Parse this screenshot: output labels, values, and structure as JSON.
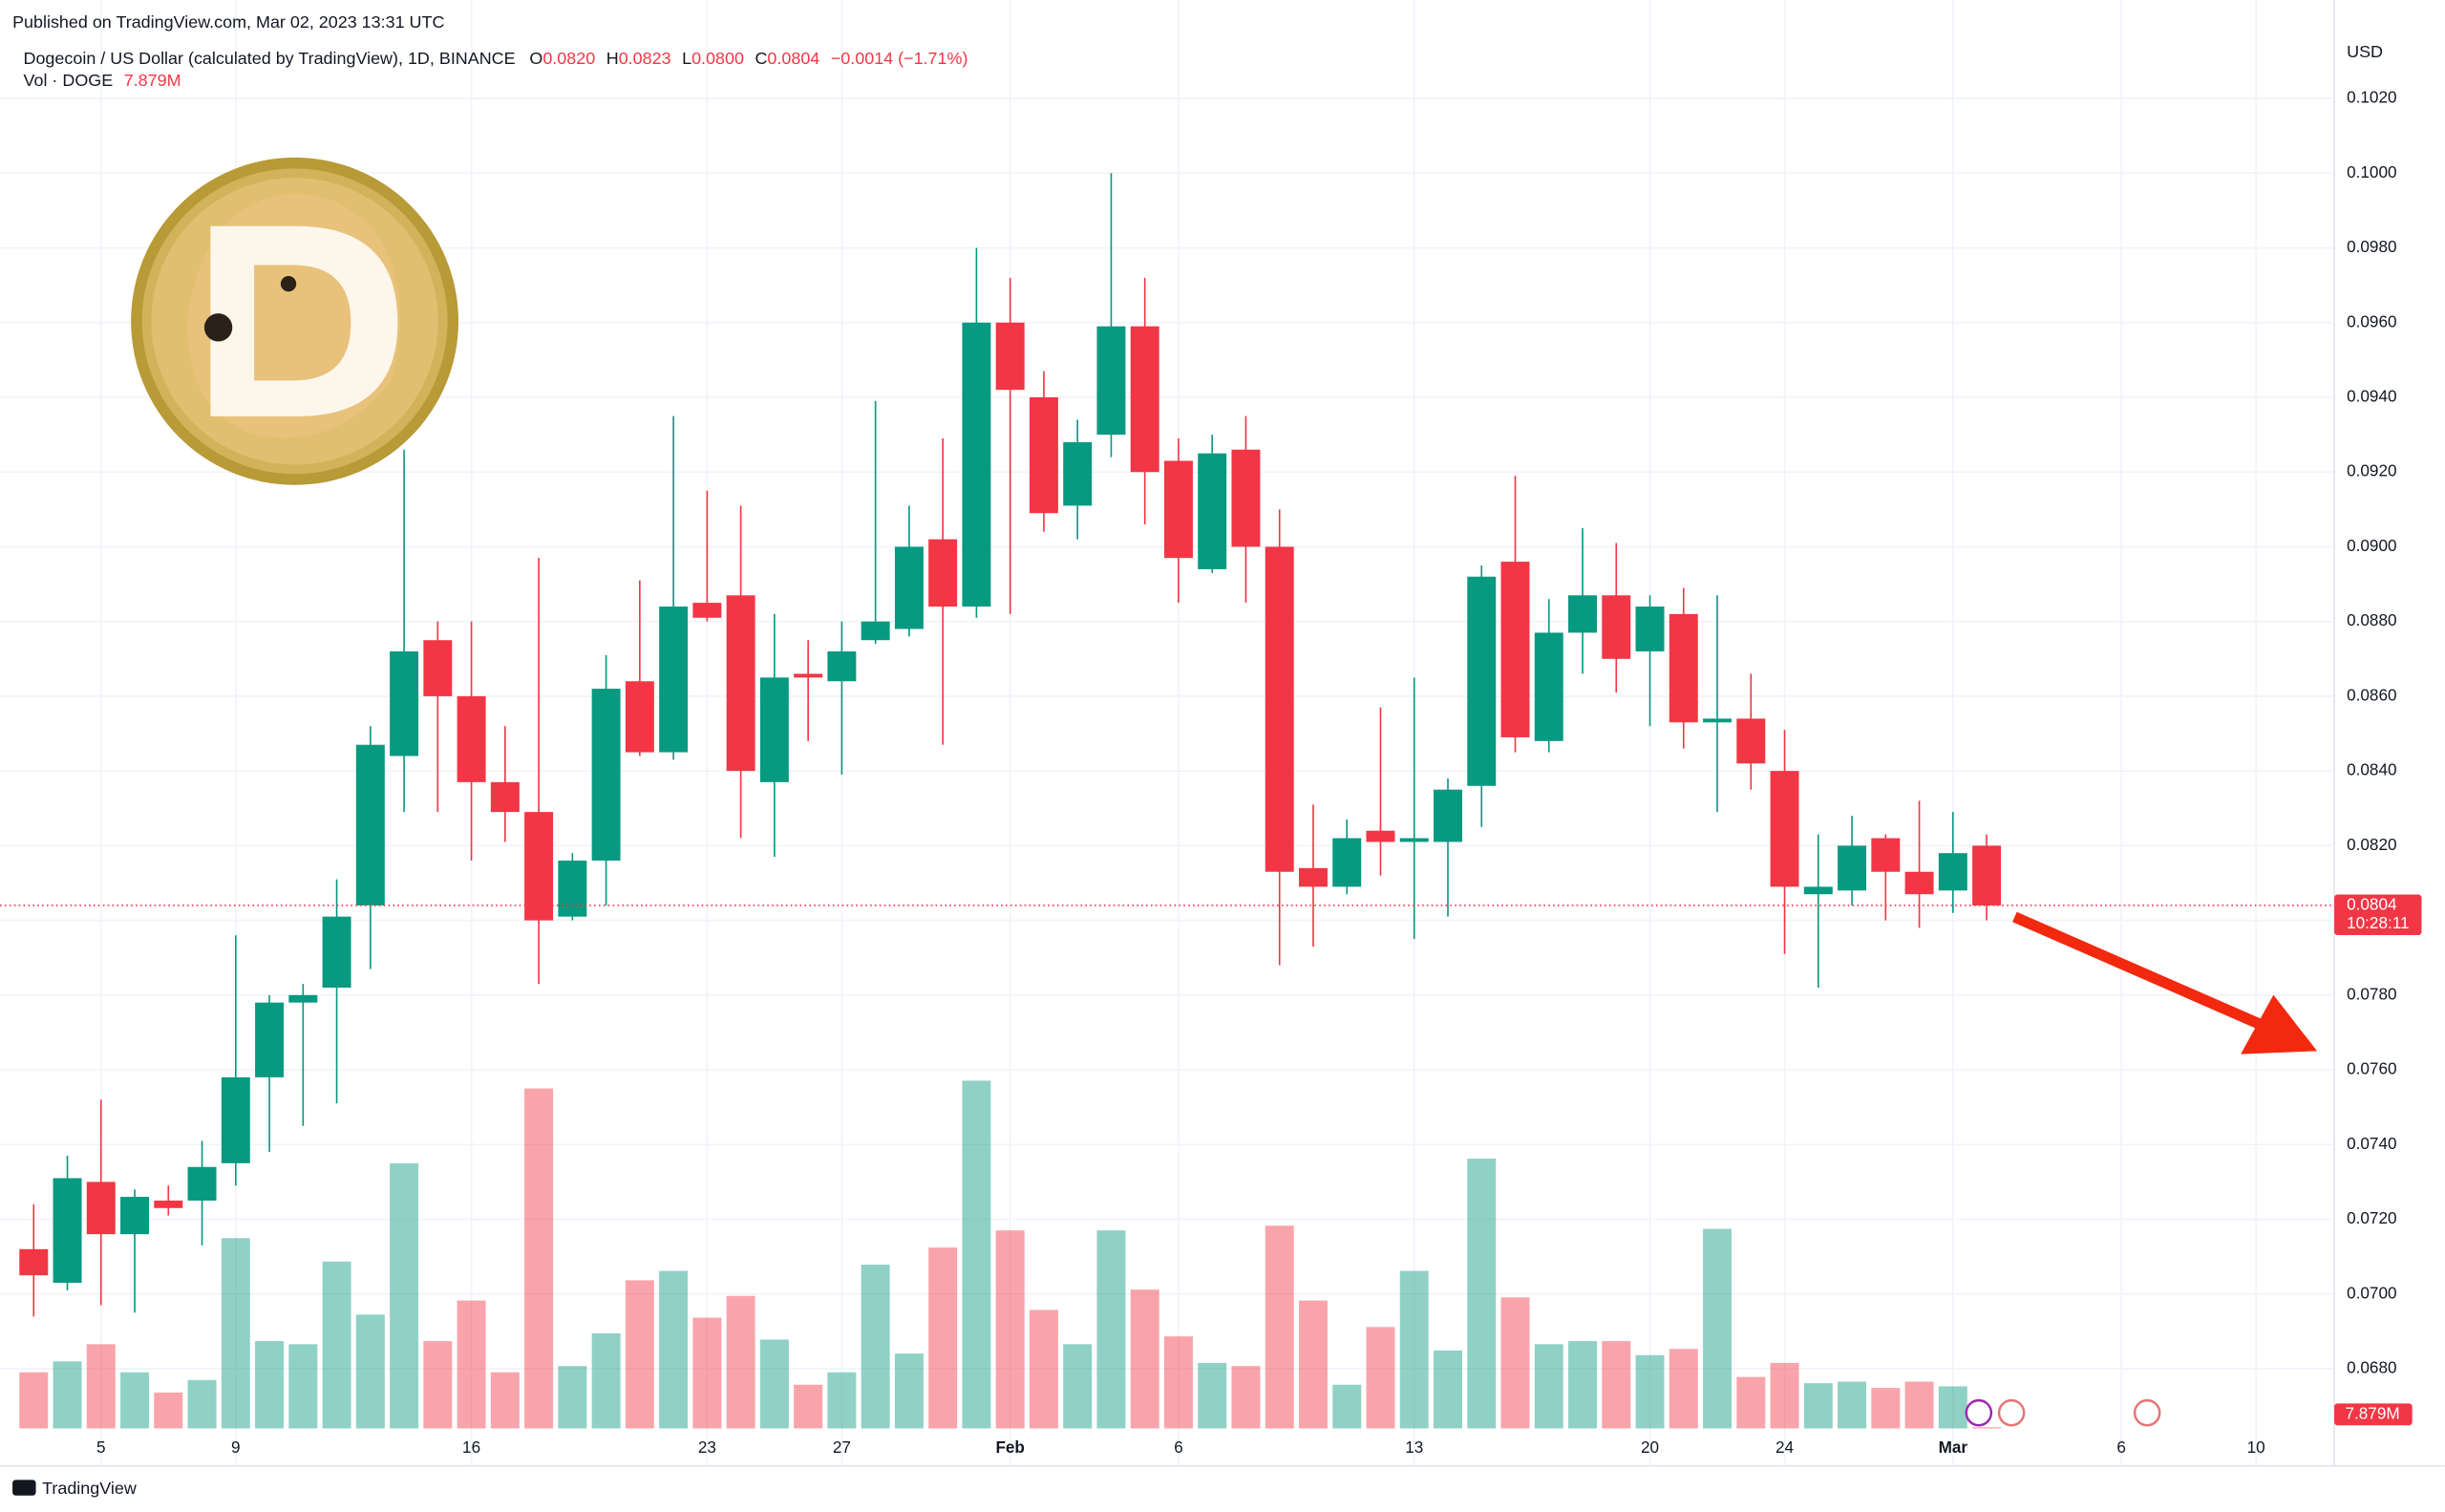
{
  "published": "Published on TradingView.com, Mar 02, 2023 13:31 UTC",
  "footer": "TradingView",
  "header": {
    "symbol": "Dogecoin / US Dollar (calculated by TradingView), 1D, BINANCE",
    "labels": [
      "O",
      "H",
      "L",
      "C"
    ],
    "values": [
      "0.0820",
      "0.0823",
      "0.0800",
      "0.0804"
    ],
    "change": "−0.0014 (−1.71%)",
    "volume_title": "Vol · DOGE"
  },
  "chart_data": {
    "type": "candlestick",
    "y_unit": "USD",
    "x": [
      "2023-01-03",
      "2023-01-04",
      "2023-01-05",
      "2023-01-06",
      "2023-01-07",
      "2023-01-08",
      "2023-01-09",
      "2023-01-10",
      "2023-01-11",
      "2023-01-12",
      "2023-01-13",
      "2023-01-14",
      "2023-01-15",
      "2023-01-16",
      "2023-01-17",
      "2023-01-18",
      "2023-01-19",
      "2023-01-20",
      "2023-01-21",
      "2023-01-22",
      "2023-01-23",
      "2023-01-24",
      "2023-01-25",
      "2023-01-26",
      "2023-01-27",
      "2023-01-28",
      "2023-01-29",
      "2023-01-30",
      "2023-01-31",
      "2023-02-01",
      "2023-02-02",
      "2023-02-03",
      "2023-02-04",
      "2023-02-05",
      "2023-02-06",
      "2023-02-07",
      "2023-02-08",
      "2023-02-09",
      "2023-02-10",
      "2023-02-11",
      "2023-02-12",
      "2023-02-13",
      "2023-02-14",
      "2023-02-15",
      "2023-02-16",
      "2023-02-17",
      "2023-02-18",
      "2023-02-19",
      "2023-02-20",
      "2023-02-21",
      "2023-02-22",
      "2023-02-23",
      "2023-02-24",
      "2023-02-25",
      "2023-02-26",
      "2023-02-27",
      "2023-02-28",
      "2023-03-01",
      "2023-03-02"
    ],
    "open": [
      0.0712,
      0.0703,
      0.073,
      0.0716,
      0.0725,
      0.0725,
      0.0735,
      0.0758,
      0.0778,
      0.0782,
      0.0804,
      0.0844,
      0.0875,
      0.086,
      0.0837,
      0.0829,
      0.0801,
      0.0816,
      0.0864,
      0.0845,
      0.0885,
      0.0887,
      0.0837,
      0.0866,
      0.0864,
      0.0875,
      0.0878,
      0.0902,
      0.0884,
      0.096,
      0.094,
      0.0911,
      0.093,
      0.0959,
      0.0923,
      0.0894,
      0.0926,
      0.09,
      0.0814,
      0.0809,
      0.0824,
      0.0821,
      0.0821,
      0.0836,
      0.0896,
      0.0848,
      0.0877,
      0.0887,
      0.0872,
      0.0882,
      0.0853,
      0.0854,
      0.084,
      0.0807,
      0.0808,
      0.0822,
      0.0813,
      0.0808,
      0.082
    ],
    "high": [
      0.0724,
      0.0737,
      0.0752,
      0.0728,
      0.0729,
      0.0741,
      0.0796,
      0.078,
      0.0783,
      0.0811,
      0.0852,
      0.0926,
      0.088,
      0.088,
      0.0852,
      0.0897,
      0.0818,
      0.0871,
      0.0891,
      0.0935,
      0.0915,
      0.0911,
      0.0882,
      0.0875,
      0.088,
      0.0939,
      0.0911,
      0.0929,
      0.098,
      0.0972,
      0.0947,
      0.0934,
      0.1,
      0.0972,
      0.0929,
      0.093,
      0.0935,
      0.091,
      0.0831,
      0.0827,
      0.0857,
      0.0865,
      0.0838,
      0.0895,
      0.0919,
      0.0886,
      0.0905,
      0.0901,
      0.0887,
      0.0889,
      0.0887,
      0.0866,
      0.0851,
      0.0823,
      0.0828,
      0.0823,
      0.0832,
      0.0829,
      0.0823
    ],
    "low": [
      0.0694,
      0.0701,
      0.0697,
      0.0695,
      0.0721,
      0.0713,
      0.0729,
      0.0738,
      0.0745,
      0.0751,
      0.0787,
      0.0829,
      0.0829,
      0.0816,
      0.0821,
      0.0783,
      0.08,
      0.0804,
      0.0844,
      0.0843,
      0.088,
      0.0822,
      0.0817,
      0.0848,
      0.0839,
      0.0874,
      0.0876,
      0.0847,
      0.0881,
      0.0882,
      0.0904,
      0.0902,
      0.0924,
      0.0906,
      0.0885,
      0.0893,
      0.0885,
      0.0788,
      0.0793,
      0.0807,
      0.0812,
      0.0795,
      0.0801,
      0.0825,
      0.0845,
      0.0845,
      0.0866,
      0.0861,
      0.0852,
      0.0846,
      0.0829,
      0.0835,
      0.0791,
      0.0782,
      0.0804,
      0.08,
      0.0798,
      0.0802,
      0.08
    ],
    "close": [
      0.0705,
      0.0731,
      0.0716,
      0.0726,
      0.0723,
      0.0734,
      0.0758,
      0.0778,
      0.078,
      0.0801,
      0.0847,
      0.0872,
      0.086,
      0.0837,
      0.0829,
      0.08,
      0.0816,
      0.0862,
      0.0845,
      0.0884,
      0.0881,
      0.084,
      0.0865,
      0.0865,
      0.0872,
      0.088,
      0.09,
      0.0884,
      0.096,
      0.0942,
      0.0909,
      0.0928,
      0.0959,
      0.092,
      0.0897,
      0.0925,
      0.09,
      0.0813,
      0.0809,
      0.0822,
      0.0821,
      0.0822,
      0.0835,
      0.0892,
      0.0849,
      0.0877,
      0.0887,
      0.087,
      0.0884,
      0.0853,
      0.0854,
      0.0842,
      0.0809,
      0.0809,
      0.082,
      0.0813,
      0.0807,
      0.0818,
      0.0804
    ],
    "volume": [
      360,
      430,
      540,
      360,
      230,
      310,
      1220,
      560,
      540,
      1070,
      730,
      1700,
      560,
      820,
      360,
      2180,
      400,
      610,
      950,
      1010,
      710,
      850,
      570,
      280,
      360,
      1050,
      480,
      1160,
      2230,
      1270,
      760,
      540,
      1270,
      890,
      590,
      420,
      400,
      1300,
      820,
      280,
      650,
      1010,
      500,
      1730,
      840,
      540,
      560,
      560,
      470,
      510,
      1280,
      330,
      420,
      290,
      300,
      260,
      300,
      270,
      7.879
    ],
    "volume_labels": [
      null,
      null,
      null,
      null,
      null,
      null,
      null,
      null,
      null,
      null,
      null,
      null,
      null,
      null,
      null,
      null,
      null,
      null,
      null,
      null,
      null,
      null,
      null,
      null,
      null,
      null,
      null,
      null,
      null,
      null,
      null,
      null,
      null,
      null,
      null,
      null,
      null,
      null,
      null,
      null,
      null,
      null,
      null,
      null,
      null,
      null,
      null,
      null,
      null,
      null,
      null,
      null,
      null,
      null,
      null,
      null,
      null,
      null,
      "7.879M"
    ],
    "up_color": "#089981",
    "down_color": "#f23645",
    "last_price_label": "0.0804",
    "countdown": "10:28:11",
    "xlim": [
      "2023-01-02",
      "2023-03-12"
    ],
    "xticks": [
      {
        "value": "2023-01-05",
        "label": "5"
      },
      {
        "value": "2023-01-09",
        "label": "9"
      },
      {
        "value": "2023-01-16",
        "label": "16"
      },
      {
        "value": "2023-01-23",
        "label": "23"
      },
      {
        "value": "2023-01-27",
        "label": "27"
      },
      {
        "value": "2023-02-01",
        "label": "Feb"
      },
      {
        "value": "2023-02-06",
        "label": "6"
      },
      {
        "value": "2023-02-13",
        "label": "13"
      },
      {
        "value": "2023-02-20",
        "label": "20"
      },
      {
        "value": "2023-02-24",
        "label": "24"
      },
      {
        "value": "2023-03-01",
        "label": "Mar"
      },
      {
        "value": "2023-03-06",
        "label": "6"
      },
      {
        "value": "2023-03-10",
        "label": "10"
      }
    ],
    "ylim": [
      0.0654,
      0.1038
    ],
    "yticks": [
      {
        "value": 0.068,
        "label": "0.0680"
      },
      {
        "value": 0.07,
        "label": "0.0700"
      },
      {
        "value": 0.072,
        "label": "0.0720"
      },
      {
        "value": 0.074,
        "label": "0.0740"
      },
      {
        "value": 0.076,
        "label": "0.0760"
      },
      {
        "value": 0.078,
        "label": "0.0780"
      },
      {
        "value": 0.08,
        "label": "0.0800"
      },
      {
        "value": 0.082,
        "label": "0.0820"
      },
      {
        "value": 0.084,
        "label": "0.0840"
      },
      {
        "value": 0.086,
        "label": "0.0860"
      },
      {
        "value": 0.088,
        "label": "0.0880"
      },
      {
        "value": 0.09,
        "label": "0.0900"
      },
      {
        "value": 0.092,
        "label": "0.0920"
      },
      {
        "value": 0.094,
        "label": "0.0940"
      },
      {
        "value": 0.096,
        "label": "0.0960"
      },
      {
        "value": 0.098,
        "label": "0.0980"
      },
      {
        "value": 0.1,
        "label": "0.1000"
      },
      {
        "value": 0.102,
        "label": "0.1020"
      }
    ],
    "grid": true
  }
}
